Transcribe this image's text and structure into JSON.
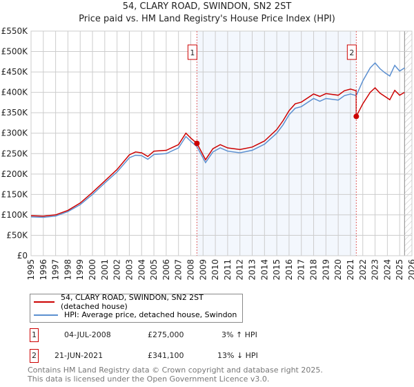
{
  "chart_data": {
    "type": "line",
    "title": "54, CLARY ROAD, SWINDON, SN2 2ST",
    "subtitle": "Price paid vs. HM Land Registry's House Price Index (HPI)",
    "xlim": [
      1995,
      2026
    ],
    "ylim": [
      0,
      550000
    ],
    "x_ticks": [
      "1995",
      "1996",
      "1997",
      "1998",
      "1999",
      "2000",
      "2001",
      "2002",
      "2003",
      "2004",
      "2005",
      "2006",
      "2007",
      "2008",
      "2009",
      "2010",
      "2011",
      "2012",
      "2013",
      "2014",
      "2015",
      "2016",
      "2017",
      "2018",
      "2019",
      "2020",
      "2021",
      "2022",
      "2023",
      "2024",
      "2025",
      "2026"
    ],
    "y_ticks": [
      "£0",
      "£50K",
      "£100K",
      "£150K",
      "£200K",
      "£250K",
      "£300K",
      "£350K",
      "£400K",
      "£450K",
      "£500K",
      "£550K"
    ],
    "grid": true,
    "shaded_region": [
      2008.5,
      2021.47
    ],
    "forecast_hatch_from": 2025.4,
    "series": [
      {
        "name": "54, CLARY ROAD, SWINDON, SN2 2ST (detached house)",
        "color": "#cc0000",
        "x": [
          1995,
          1996,
          1997,
          1998,
          1999,
          2000,
          2001,
          2002,
          2003,
          2003.5,
          2004,
          2004.5,
          2005,
          2006,
          2007,
          2007.6,
          2008,
          2008.5,
          2009.2,
          2009.8,
          2010.4,
          2011,
          2012,
          2013,
          2014,
          2015,
          2015.5,
          2016,
          2016.5,
          2017,
          2018,
          2018.5,
          2019,
          2020,
          2020.5,
          2021,
          2021.46,
          2021.47,
          2022,
          2022.6,
          2023,
          2023.4,
          2023.8,
          2024.2,
          2024.6,
          2025,
          2025.4
        ],
        "y": [
          98000,
          97000,
          100000,
          111000,
          129000,
          155000,
          183000,
          211000,
          247000,
          254000,
          252000,
          243000,
          256000,
          258000,
          272000,
          300000,
          288000,
          275000,
          235000,
          262000,
          272000,
          264000,
          260000,
          266000,
          281000,
          309000,
          330000,
          355000,
          372000,
          376000,
          396000,
          390000,
          397000,
          393000,
          404000,
          408000,
          404000,
          341100,
          372000,
          400000,
          411000,
          398000,
          390000,
          382000,
          405000,
          393000,
          400000
        ]
      },
      {
        "name": "HPI: Average price, detached house, Swindon",
        "color": "#5b8fd0",
        "x": [
          1995,
          1996,
          1997,
          1998,
          1999,
          2000,
          2001,
          2002,
          2003,
          2003.5,
          2004,
          2004.5,
          2005,
          2006,
          2007,
          2007.6,
          2008,
          2008.5,
          2009.2,
          2009.8,
          2010.4,
          2011,
          2012,
          2013,
          2014,
          2015,
          2015.5,
          2016,
          2016.5,
          2017,
          2018,
          2018.5,
          2019,
          2020,
          2020.5,
          2021,
          2021.47,
          2022,
          2022.6,
          2023,
          2023.4,
          2023.8,
          2024.2,
          2024.6,
          2025,
          2025.4
        ],
        "y": [
          95000,
          94000,
          97000,
          108000,
          125000,
          150000,
          178000,
          205000,
          240000,
          246000,
          245000,
          236000,
          248000,
          250000,
          264000,
          292000,
          280000,
          267000,
          228000,
          254000,
          264000,
          256000,
          252000,
          258000,
          273000,
          300000,
          320000,
          345000,
          361000,
          365000,
          385000,
          378000,
          385000,
          381000,
          392000,
          396000,
          392000,
          428000,
          460000,
          472000,
          458000,
          448000,
          440000,
          466000,
          452000,
          460000
        ]
      }
    ],
    "annotations": [
      {
        "label": "1",
        "x": 2008.5,
        "y": 275000
      },
      {
        "label": "2",
        "x": 2021.47,
        "y": 341100
      }
    ]
  },
  "legend": [
    "54, CLARY ROAD, SWINDON, SN2 2ST (detached house)",
    "HPI: Average price, detached house, Swindon"
  ],
  "transactions": [
    {
      "num": "1",
      "date": "04-JUL-2008",
      "price": "£275,000",
      "hpi": "3% ↑ HPI"
    },
    {
      "num": "2",
      "date": "21-JUN-2021",
      "price": "£341,100",
      "hpi": "13% ↓ HPI"
    }
  ],
  "footer": [
    "Contains HM Land Registry data © Crown copyright and database right 2025.",
    "This data is licensed under the Open Government Licence v3.0."
  ]
}
